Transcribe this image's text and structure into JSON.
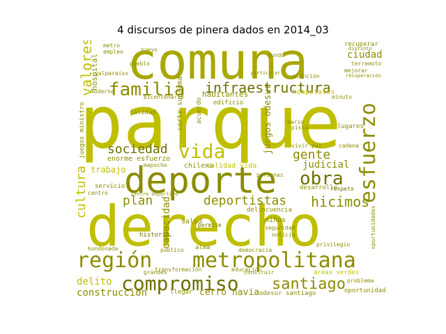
{
  "title": "4 discursos de pinera dados en 2014_03",
  "palette": {
    "olive": "#8c8c00",
    "yellow": "#bfbf00",
    "khaki": "#a8a800",
    "light": "#d0d000"
  },
  "words": {
    "comuna": "comuna",
    "parque": "parque",
    "deporte": "deporte",
    "derecho": "derecho",
    "region": "región",
    "metropolitana": "metropolitana",
    "compromiso": "compromiso",
    "santiago": "santiago",
    "familia": "familia",
    "infraestructura": "infraestructura",
    "vida": "vida",
    "esfuerzo": "esfuerzo",
    "obra": "obra",
    "gente": "gente",
    "hicimos": "hicimos",
    "deportistas": "deportistas",
    "sociedad": "sociedad",
    "cultura": "cultura",
    "valores": "valores",
    "plan": "plan",
    "judicial": "judicial",
    "capacidad": "capacidad",
    "delito": "delito",
    "construccion": "construcción",
    "cerro_navia": "cerro navia",
    "trabajo": "trabajo",
    "ciudad": "ciudad",
    "hospital": "hospital",
    "calidad": "calidad",
    "ninos": "niños",
    "historia": "historia",
    "desarrollo": "desarrollo",
    "oportunidad": "oportunidad",
    "habitantes": "habitantes",
    "hospitales": "hospitales",
    "edificio": "edificio",
    "lugares": "lugares",
    "chilena": "chilena",
    "calidad_vida": "calidad vida",
    "servicio": "servicio",
    "salud": "salud",
    "mapocho": "mapocho",
    "enorme_esfuerzo": "enorme esfuerzo",
    "delincuencia": "delincuencia",
    "permite": "permite",
    "seguridad": "seguridad",
    "noticia": "noticia",
    "democracia": "democracia",
    "alma": "alma",
    "odesur_santiago": "odesur santiago",
    "areas_verdes": "áreas verdes",
    "llegar": "llegar",
    "problema": "problema",
    "metro": "metro",
    "empleo": "empleo",
    "recuperar": "recuperar",
    "terremoto": "terremoto",
    "juegos_odesur": "juegos odesur",
    "marzo": "marzo",
    "cadena": "cadena",
    "respeto": "respeto",
    "minuto": "minuto",
    "atencion": "atención",
    "mejorar": "mejorar",
    "distinto": "distinto",
    "valparaiso": "valparaíso",
    "moderna": "moderna",
    "bicentenario": "bicentenario",
    "juegos_ministro": "juegos ministro",
    "corte_suprema": "corte suprema",
    "acuerdo": "acuerdo",
    "transformacion": "transformación",
    "educacion": "educación",
    "construir": "construir",
    "publico": "público",
    "privilegio": "privilegio",
    "oportunidades": "oportunidades",
    "hondonada": "hondonada",
    "centro": "centro",
    "grandes": "grandes",
    "pista": "pista",
    "vivir_paz": "vivir paz",
    "mundo": "mundo",
    "recuperacion": "recuperación",
    "particular": "particular",
    "centro_deportivo": "centro deportivo",
    "personas": "personas",
    "nuevo": "nuevo",
    "pueblo": "pueblo"
  }
}
